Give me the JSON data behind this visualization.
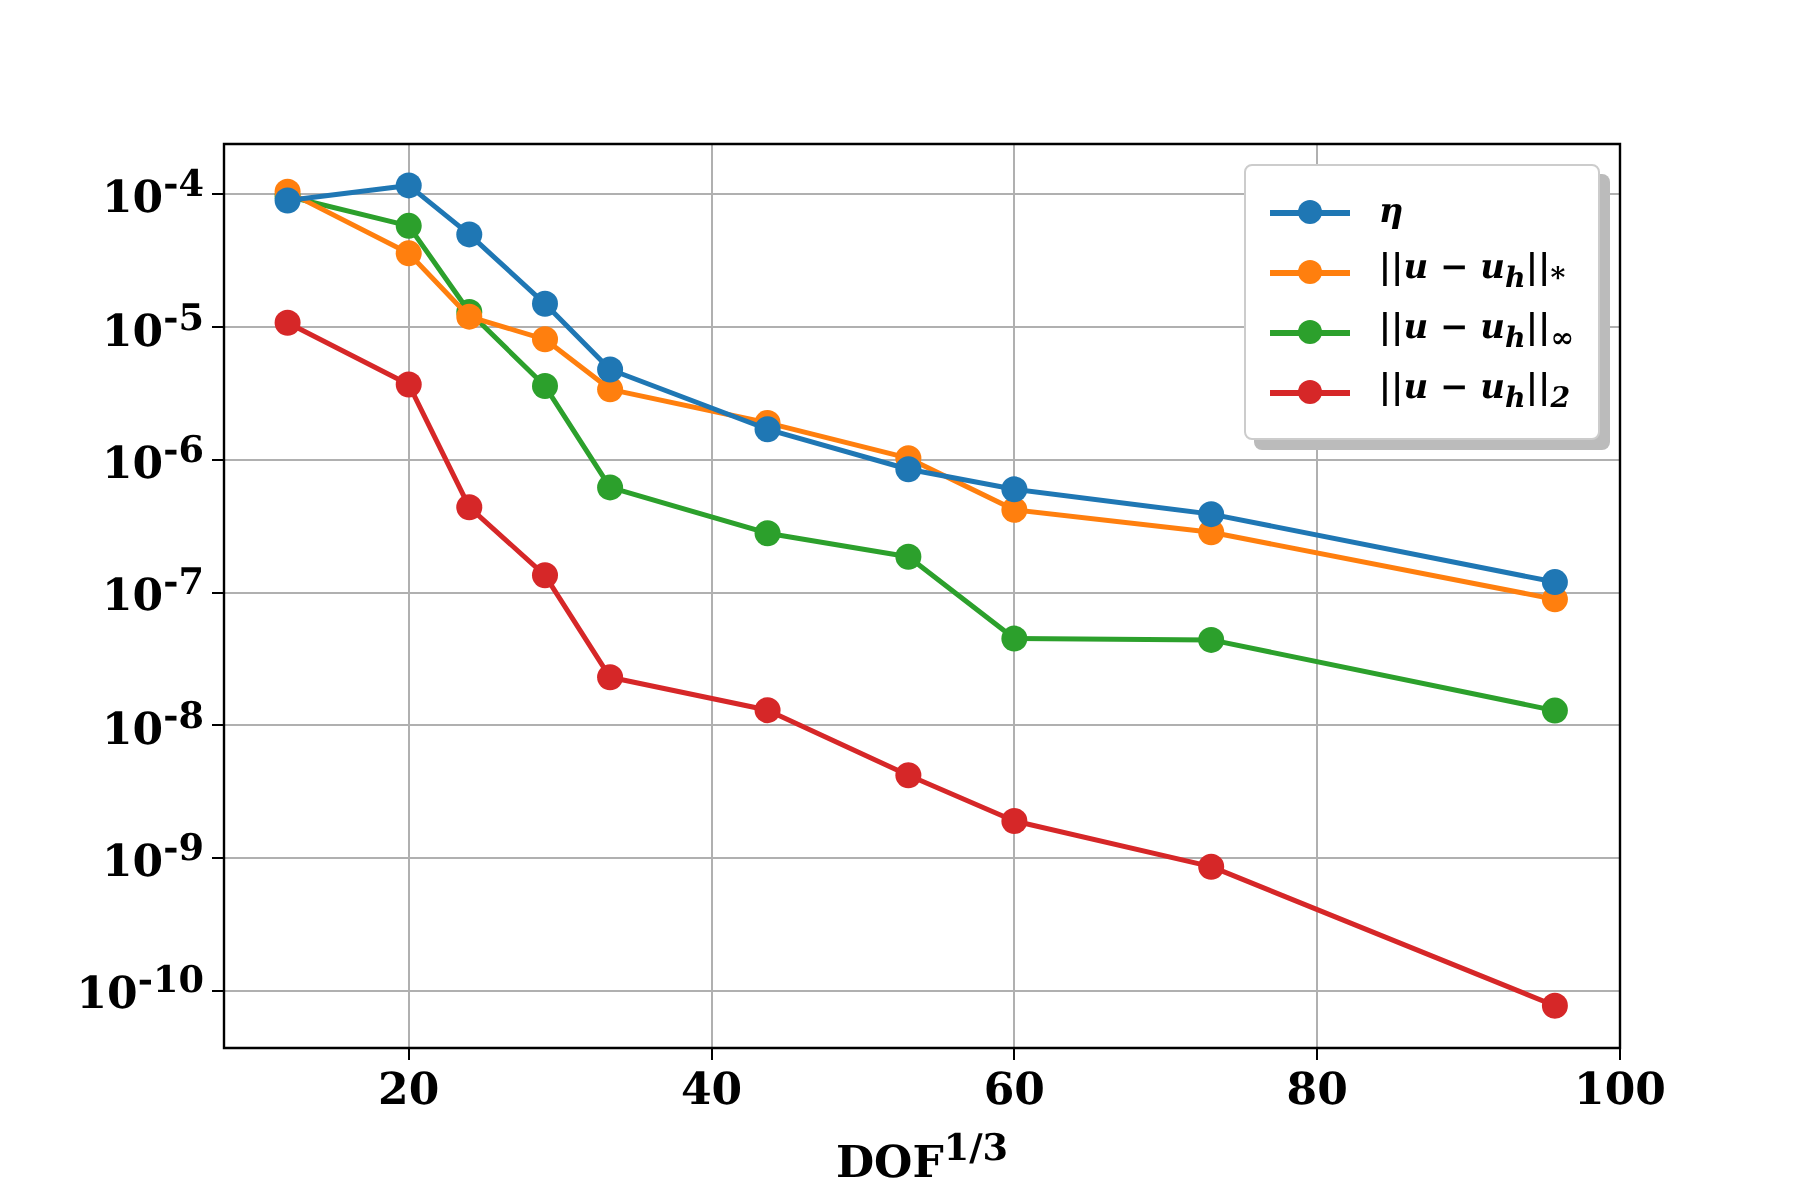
{
  "chart_data": {
    "type": "line",
    "xlabel": "DOF$^{1/3}$",
    "x": [
      12,
      20,
      24,
      29,
      33.3,
      43.7,
      53,
      60,
      73,
      95.7
    ],
    "series": [
      {
        "name": "η",
        "color": "#1f77b4",
        "values": [
          9e-05,
          0.000117,
          5e-05,
          1.5e-05,
          4.8e-06,
          1.7e-06,
          8.5e-07,
          6e-07,
          3.9e-07,
          1.2e-07
        ]
      },
      {
        "name": "||u − u$_{h}$||$_{*}$",
        "color": "#ff7f0e",
        "values": [
          0.000105,
          3.6e-05,
          1.2e-05,
          8.1e-06,
          3.4e-06,
          1.9e-06,
          1.03e-06,
          4.2e-07,
          2.85e-07,
          8.9e-08
        ]
      },
      {
        "name": "||u − u$_{h}$||$_{∞}$",
        "color": "#2ca02c",
        "values": [
          9.7e-05,
          5.8e-05,
          1.3e-05,
          3.6e-06,
          6.2e-07,
          2.8e-07,
          1.86e-07,
          4.5e-08,
          4.4e-08,
          1.29e-08
        ]
      },
      {
        "name": "||u − u$_{h}$||$_{2}$",
        "color": "#d62728",
        "values": [
          1.08e-05,
          3.7e-06,
          4.4e-07,
          1.35e-07,
          2.3e-08,
          1.3e-08,
          4.2e-09,
          1.9e-09,
          8.6e-10,
          7.7e-11
        ]
      }
    ],
    "xlim": [
      7.8,
      100
    ],
    "xticks": [
      20,
      40,
      60,
      80,
      100
    ],
    "ylim": [
      3.7e-11,
      0.00024
    ],
    "yticks": [
      {
        "value": 0.0001,
        "label": "10$^{-4}$"
      },
      {
        "value": 1e-05,
        "label": "10$^{-5}$"
      },
      {
        "value": 1e-06,
        "label": "10$^{-6}$"
      },
      {
        "value": 1e-07,
        "label": "10$^{-7}$"
      },
      {
        "value": 1e-08,
        "label": "10$^{-8}$"
      },
      {
        "value": 1e-09,
        "label": "10$^{-9}$"
      },
      {
        "value": 1e-10,
        "label": "10$^{-10}$"
      }
    ],
    "log": "y",
    "grid": true,
    "legend": "top right",
    "marker": "circle"
  }
}
